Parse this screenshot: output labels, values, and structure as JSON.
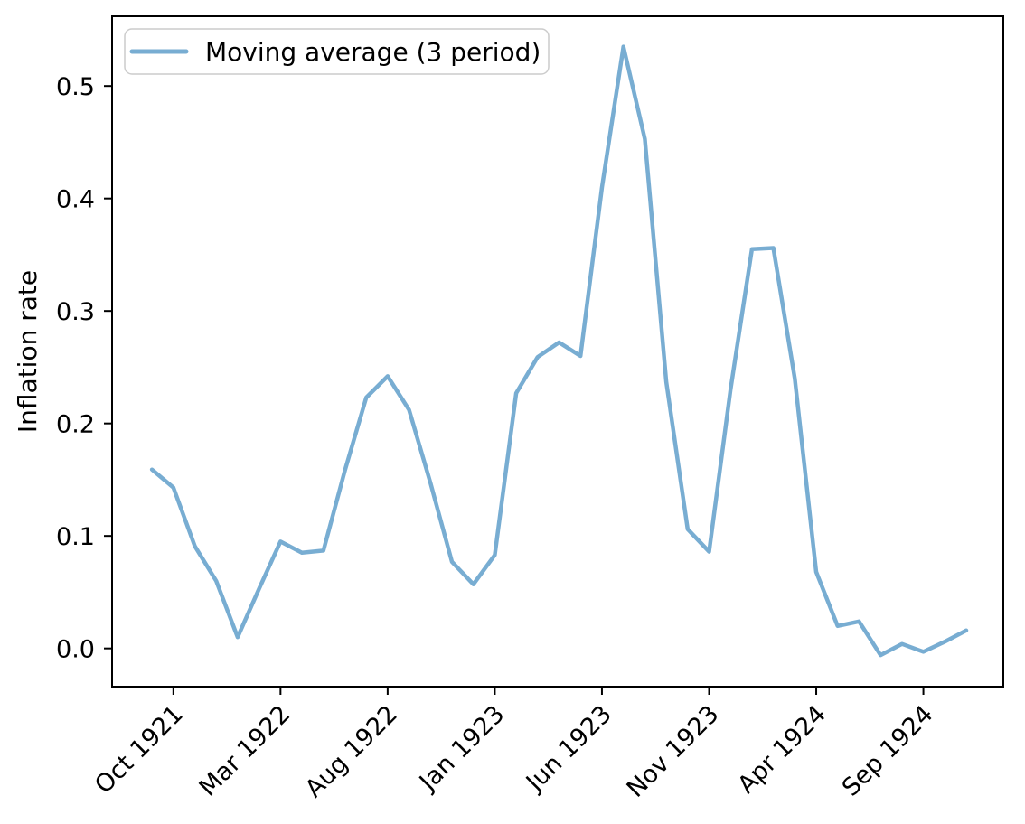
{
  "figure": {
    "background": "#ffffff",
    "border_color": "#000000",
    "legend_border_color": "#cccccc"
  },
  "chart_data": {
    "type": "line",
    "title": "",
    "xlabel": "",
    "ylabel": "Inflation rate",
    "grid": false,
    "legend": {
      "position": "upper left",
      "entries": [
        {
          "label": "Moving average (3 period)",
          "color": "#78add2"
        }
      ]
    },
    "x": [
      "Sep 1921",
      "Oct 1921",
      "Nov 1921",
      "Dec 1921",
      "Jan 1922",
      "Feb 1922",
      "Mar 1922",
      "Apr 1922",
      "May 1922",
      "Jun 1922",
      "Jul 1922",
      "Aug 1922",
      "Sep 1922",
      "Oct 1922",
      "Nov 1922",
      "Dec 1922",
      "Jan 1923",
      "Feb 1923",
      "Mar 1923",
      "Apr 1923",
      "May 1923",
      "Jun 1923",
      "Jul 1923",
      "Aug 1923",
      "Sep 1923",
      "Oct 1923",
      "Nov 1923",
      "Dec 1923",
      "Jan 1924",
      "Feb 1924",
      "Mar 1924",
      "Apr 1924",
      "May 1924",
      "Jun 1924",
      "Jul 1924",
      "Aug 1924",
      "Sep 1924",
      "Oct 1924",
      "Nov 1924"
    ],
    "series": [
      {
        "name": "Moving average (3 period)",
        "color": "#78add2",
        "line_width": 4.5,
        "values": [
          0.159,
          0.143,
          0.091,
          0.06,
          0.01,
          0.053,
          0.095,
          0.085,
          0.087,
          0.158,
          0.223,
          0.242,
          0.212,
          0.147,
          0.077,
          0.057,
          0.083,
          0.227,
          0.259,
          0.272,
          0.26,
          0.41,
          0.535,
          0.453,
          0.237,
          0.106,
          0.086,
          0.23,
          0.355,
          0.356,
          0.24,
          0.068,
          0.02,
          0.024,
          -0.006,
          0.004,
          -0.003,
          0.006,
          0.016
        ]
      }
    ],
    "axes": {
      "x_tick_indices": [
        1,
        6,
        11,
        16,
        21,
        26,
        31,
        36
      ],
      "x_tick_labels": [
        "Oct 1921",
        "Mar 1922",
        "Aug 1922",
        "Jan 1923",
        "Jun 1923",
        "Nov 1923",
        "Apr 1924",
        "Sep 1924"
      ],
      "x_tick_rotation": 45,
      "y_tick_values": [
        0.0,
        0.1,
        0.2,
        0.3,
        0.4,
        0.5
      ],
      "y_tick_labels": [
        "0.0",
        "0.1",
        "0.2",
        "0.3",
        "0.4",
        "0.5"
      ],
      "ylim": [
        -0.034,
        0.562
      ],
      "xlim_indices": [
        -1.86,
        39.73
      ]
    }
  }
}
